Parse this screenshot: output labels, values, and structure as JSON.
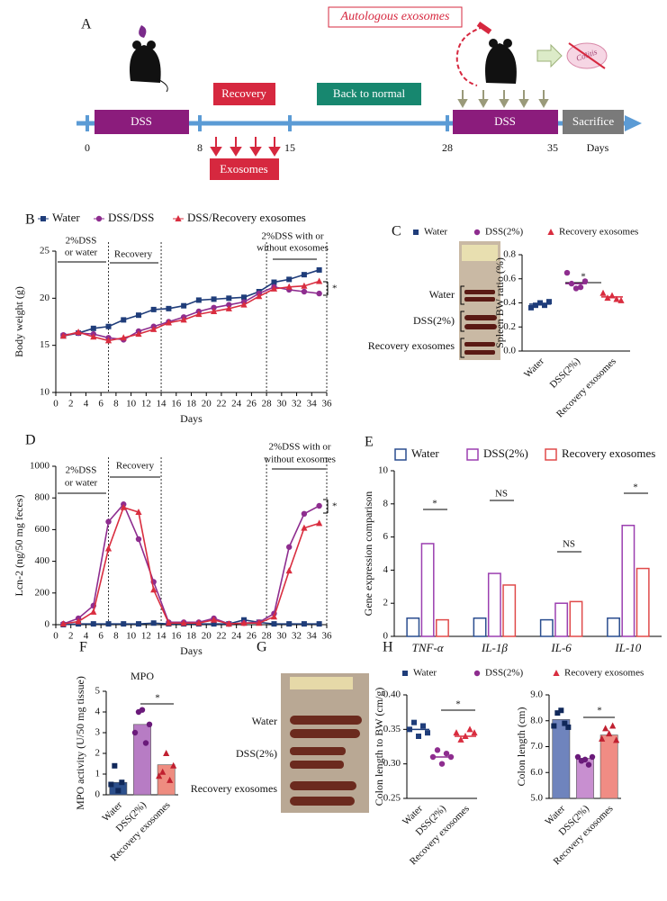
{
  "diagram": {
    "panel": "A",
    "title": "Autologous exosomes",
    "phases": [
      "DSS",
      "Recovery",
      "Back to normal",
      "DSS",
      "Sacrifice"
    ],
    "exosomes": "Exosomes",
    "timeline": [
      "0",
      "8",
      "15",
      "28",
      "35"
    ],
    "days": "Days",
    "colitis": "Colitis"
  },
  "photos": {
    "panel": "G",
    "labels": [
      "Water",
      "DSS(2%)",
      "Recovery exosomes"
    ]
  },
  "chart_data": [
    {
      "panel": "B",
      "type": "line",
      "x": [
        1,
        3,
        5,
        7,
        9,
        11,
        13,
        15,
        17,
        19,
        21,
        23,
        25,
        27,
        29,
        31,
        33,
        35
      ],
      "series": [
        {
          "name": "Water",
          "color": "#1f3d7a",
          "marker": "square",
          "values": [
            16.0,
            16.3,
            16.8,
            17.0,
            17.7,
            18.2,
            18.8,
            18.9,
            19.2,
            19.8,
            19.9,
            20.0,
            20.1,
            20.7,
            21.7,
            22.0,
            22.5,
            23.0
          ]
        },
        {
          "name": "DSS/DSS",
          "color": "#8e2d8f",
          "marker": "circle",
          "values": [
            16.1,
            16.3,
            16.2,
            15.8,
            15.6,
            16.5,
            17.0,
            17.5,
            18.0,
            18.6,
            19.0,
            19.3,
            19.6,
            20.5,
            21.2,
            20.9,
            20.7,
            20.5
          ]
        },
        {
          "name": "DSS/Recovery exosomes",
          "color": "#d92d3f",
          "marker": "triangle",
          "values": [
            16.0,
            16.4,
            15.9,
            15.5,
            15.8,
            16.2,
            16.7,
            17.4,
            17.7,
            18.3,
            18.6,
            18.9,
            19.3,
            20.2,
            21.0,
            21.2,
            21.3,
            21.8
          ]
        }
      ],
      "xlim": [
        0,
        36
      ],
      "xticks": [
        0,
        2,
        4,
        6,
        8,
        10,
        12,
        14,
        16,
        18,
        20,
        22,
        24,
        26,
        28,
        30,
        32,
        34,
        36
      ],
      "ylim": [
        10,
        25
      ],
      "yticks": [
        10,
        15,
        20,
        25
      ],
      "xlabel": "Days",
      "ylabel": "Body weight (g)",
      "phase_lines": [
        7,
        14,
        28,
        36
      ],
      "annotations": [
        "2%DSS",
        "or water",
        "Recovery",
        "2%DSS with or",
        "without exosomes",
        "*"
      ]
    },
    {
      "panel": "C",
      "type": "strip",
      "categories": [
        "Water",
        "DSS(2%)",
        "Recovery exosomes"
      ],
      "colors": [
        "#1f3d7a",
        "#8e2d8f",
        "#d92d3f"
      ],
      "markers": [
        "square",
        "circle",
        "triangle"
      ],
      "points": [
        [
          0.36,
          0.38,
          0.4,
          0.38,
          0.41
        ],
        [
          0.65,
          0.56,
          0.52,
          0.53,
          0.58
        ],
        [
          0.48,
          0.44,
          0.46,
          0.43,
          0.42
        ]
      ],
      "means": [
        0.39,
        0.56,
        0.45
      ],
      "ylim": [
        0,
        0.8
      ],
      "yticks": [
        {
          "value": 0,
          "label": "0.0"
        },
        0.2,
        0.4,
        0.6,
        0.8
      ],
      "ylabel": "Spleen BW ratio (%)",
      "legend": true,
      "image_labels": [
        "Water",
        "DSS(2%)",
        "Recovery exosomes"
      ],
      "annotations": [
        "*"
      ]
    },
    {
      "panel": "D",
      "type": "line",
      "x": [
        1,
        3,
        5,
        7,
        9,
        11,
        13,
        15,
        17,
        19,
        21,
        23,
        25,
        27,
        29,
        31,
        33,
        35
      ],
      "series": [
        {
          "color": "#1f3d7a",
          "marker": "square",
          "values": [
            0,
            5,
            5,
            5,
            5,
            5,
            10,
            5,
            5,
            5,
            5,
            5,
            30,
            15,
            5,
            5,
            5,
            5
          ]
        },
        {
          "color": "#8e2d8f",
          "marker": "circle",
          "values": [
            5,
            40,
            120,
            650,
            760,
            540,
            270,
            15,
            15,
            15,
            40,
            5,
            10,
            15,
            70,
            490,
            700,
            750
          ]
        },
        {
          "color": "#d92d3f",
          "marker": "triangle",
          "values": [
            5,
            20,
            80,
            480,
            740,
            710,
            220,
            10,
            10,
            10,
            30,
            5,
            10,
            10,
            50,
            340,
            610,
            640
          ]
        }
      ],
      "xlim": [
        0,
        36
      ],
      "xticks": [
        0,
        2,
        4,
        6,
        8,
        10,
        12,
        14,
        16,
        18,
        20,
        22,
        24,
        26,
        28,
        30,
        32,
        34,
        36
      ],
      "ylim": [
        0,
        1000
      ],
      "yticks": [
        0,
        200,
        400,
        600,
        800,
        1000
      ],
      "xlabel": "Days",
      "ylabel": "Lcn-2 (ng/50 mg feces)",
      "phase_lines": [
        7,
        14,
        28,
        36
      ],
      "annotations": [
        "2%DSS",
        "or water",
        "Recovery",
        "2%DSS with or",
        "without exosomes",
        "*"
      ]
    },
    {
      "panel": "E",
      "type": "bar",
      "categories": [
        "TNF-α",
        "IL-1β",
        "IL-6",
        "IL-10"
      ],
      "series": [
        {
          "name": "Water",
          "color": "#2a4d8f",
          "values": [
            1.1,
            1.1,
            1.0,
            1.1
          ]
        },
        {
          "name": "DSS(2%)",
          "color": "#9b3fb0",
          "values": [
            5.6,
            3.8,
            2.0,
            6.7
          ]
        },
        {
          "name": "Recovery exosomes",
          "color": "#e04a4a",
          "values": [
            1.0,
            3.1,
            2.1,
            4.1
          ]
        }
      ],
      "ylim": [
        0,
        10
      ],
      "yticks": [
        0,
        2,
        4,
        6,
        8,
        10
      ],
      "ylabel": "Gene expression comparison",
      "annotations": [
        "*",
        "NS",
        "NS",
        "*"
      ]
    },
    {
      "panel": "F",
      "type": "bar",
      "title": "MPO",
      "categories": [
        "Water",
        "DSS(2%)",
        "Recovery exosomes"
      ],
      "values": [
        0.6,
        3.4,
        1.45
      ],
      "colors": [
        "#2c4f8c",
        "#b77cc4",
        "#ee8c80"
      ],
      "markers": [
        "square",
        "circle",
        "triangle"
      ],
      "points": [
        [
          0.5,
          1.4,
          0.2,
          0.6
        ],
        [
          3.0,
          4.0,
          4.1,
          2.5,
          3.4
        ],
        [
          0.9,
          1.1,
          2.0,
          0.7,
          1.4
        ]
      ],
      "ylim": [
        0,
        5
      ],
      "yticks": [
        0,
        1,
        2,
        3,
        4,
        5
      ],
      "ylabel": "MPO activity (U/50 mg tissue)",
      "annotations": [
        "*"
      ]
    },
    {
      "panel": "H",
      "type": "strip",
      "categories": [
        "Water",
        "DSS(2%)",
        "Recovery exosomes"
      ],
      "colors": [
        "#1f3d7a",
        "#8e2d8f",
        "#d92d3f"
      ],
      "markers": [
        "square",
        "circle",
        "triangle"
      ],
      "points": [
        [
          0.35,
          0.36,
          0.34,
          0.355,
          0.345
        ],
        [
          0.31,
          0.32,
          0.3,
          0.315,
          0.31
        ],
        [
          0.345,
          0.335,
          0.34,
          0.35,
          0.345
        ]
      ],
      "means": [
        0.35,
        0.31,
        0.34
      ],
      "ylim": [
        0.25,
        0.4
      ],
      "yticks": [
        0.25,
        {
          "value": 0.3,
          "label": "0.30"
        },
        0.35,
        {
          "value": 0.4,
          "label": "0.40"
        }
      ],
      "ylabel": "Colon length to BW (cm/g)",
      "legend": true,
      "annotations": [
        "*"
      ]
    },
    {
      "type": "bar",
      "categories": [
        "Water",
        "DSS(2%)",
        "Recovery exosomes"
      ],
      "values": [
        8.05,
        6.55,
        7.45
      ],
      "colors": [
        "#6f84bd",
        "#c88fd0",
        "#f08c84"
      ],
      "markers": [
        "square",
        "circle",
        "triangle"
      ],
      "points": [
        [
          7.8,
          8.3,
          8.4,
          7.9,
          7.75
        ],
        [
          6.6,
          6.45,
          6.5,
          6.3,
          6.6
        ],
        [
          7.3,
          7.7,
          7.5,
          7.8,
          7.25
        ]
      ],
      "ylim": [
        5,
        9
      ],
      "yticks": [
        {
          "value": 5,
          "label": "5.0"
        },
        {
          "value": 6,
          "label": "6.0"
        },
        {
          "value": 7,
          "label": "7.0"
        },
        {
          "value": 8,
          "label": "8.0"
        },
        {
          "value": 9,
          "label": "9.0"
        }
      ],
      "ylabel": "Colon length (cm)",
      "annotations": [
        "*"
      ]
    }
  ]
}
